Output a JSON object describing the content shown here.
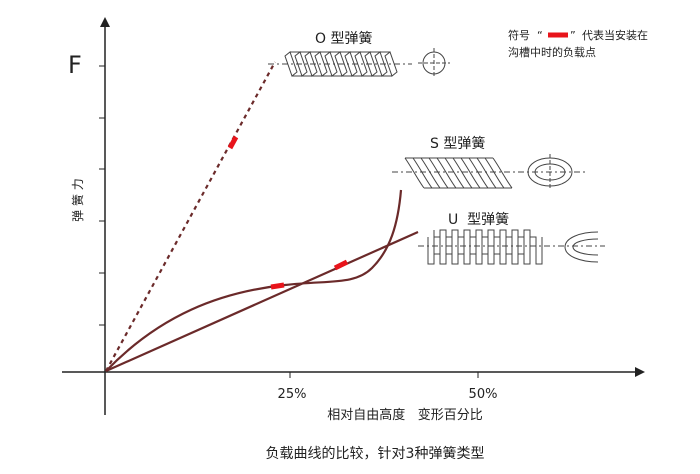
{
  "axis": {
    "y_symbol": "F",
    "y_label": "弹 簧 力",
    "x_ticks": [
      "25%",
      "50%"
    ],
    "x_label": "相对自由高度   变形百分比"
  },
  "legend": {
    "line1_prefix": "符号",
    "quote_open": "“",
    "quote_close": "”",
    "line1_suffix": "代表当安装在",
    "line2": "沟槽中时的负载点",
    "marker_color": "#e8141b"
  },
  "springs": {
    "o_label": "O 型弹簧",
    "s_label": "S 型弹簧",
    "u_label": "U  型弹簧"
  },
  "caption": "负载曲线的比较，针对3种弹簧类型",
  "colors": {
    "curve": "#6b2a2a",
    "axis": "#222222",
    "spring_stroke": "#444444",
    "marker": "#e8141b"
  }
}
